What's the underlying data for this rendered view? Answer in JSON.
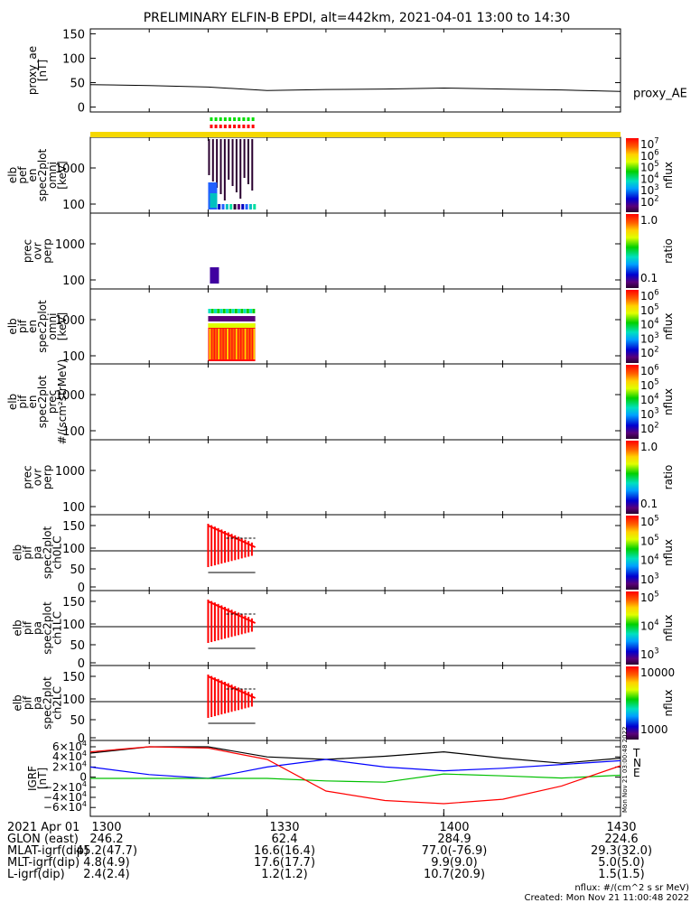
{
  "title": "PRELIMINARY ELFIN-B EPDI, alt=442km, 2021-04-01 13:00 to 14:30",
  "chart_data": [
    {
      "type": "line",
      "panel": "proxy_ae",
      "ylabel": [
        "proxy_ae",
        "[nT]"
      ],
      "yticks": [
        "150",
        "100",
        "50",
        "0"
      ],
      "ylim": [
        -10,
        160
      ],
      "legend": "proxy_AE",
      "x": [
        "13:00",
        "13:10",
        "13:20",
        "13:30",
        "13:40",
        "13:50",
        "14:00",
        "14:10",
        "14:20",
        "14:30"
      ],
      "values": [
        46,
        44,
        41,
        34,
        36,
        37,
        39,
        37,
        35,
        32
      ]
    },
    {
      "type": "heatmap",
      "panel": "elb_pef_en_spec2plot_omni",
      "ylabel": [
        "elb",
        "pef",
        "en",
        "spec2plot",
        "omni",
        "[keV]"
      ],
      "yticks": [
        "1000",
        "100"
      ],
      "colorbar": {
        "label": "nflux",
        "ticks": [
          "10^7",
          "10^6",
          "10^5",
          "10^4",
          "10^3",
          "10^2"
        ]
      },
      "time_range": [
        "13:20",
        "13:28"
      ]
    },
    {
      "type": "heatmap",
      "panel": "prec_ovr_perp_1",
      "ylabel": [
        "prec",
        "ovr",
        "perp"
      ],
      "yticks": [
        "1000",
        "100"
      ],
      "colorbar": {
        "label": "ratio",
        "ticks": [
          "1.0",
          "0.1"
        ]
      }
    },
    {
      "type": "heatmap",
      "panel": "elb_pif_en_spec2plot_omni",
      "ylabel": [
        "elb",
        "pif",
        "en",
        "spec2plot",
        "omni",
        "[keV]"
      ],
      "yticks": [
        "1000",
        "100"
      ],
      "colorbar": {
        "label": "nflux",
        "ticks": [
          "10^6",
          "10^5",
          "10^4",
          "10^3",
          "10^2"
        ]
      },
      "time_range": [
        "13:20",
        "13:28"
      ]
    },
    {
      "type": "heatmap",
      "panel": "elb_pif_en_spec2plot_prec",
      "ylabel": [
        "elb",
        "pif",
        "en",
        "spec2plot",
        "prec",
        "#/(scm²strMeV)"
      ],
      "yticks": [
        "1000",
        "100"
      ],
      "colorbar": {
        "label": "nflux",
        "ticks": [
          "10^6",
          "10^5",
          "10^4",
          "10^3",
          "10^2"
        ]
      }
    },
    {
      "type": "heatmap",
      "panel": "prec_ovr_perp_2",
      "ylabel": [
        "prec",
        "ovr",
        "perp"
      ],
      "yticks": [
        "1000",
        "100"
      ],
      "colorbar": {
        "label": "ratio",
        "ticks": [
          "1.0",
          "0.1"
        ]
      }
    },
    {
      "type": "heatmap",
      "panel": "elb_pif_pa_spec2plot_ch0LC",
      "ylabel": [
        "elb",
        "pif",
        "pa",
        "spec2plot",
        "ch0LC"
      ],
      "yticks": [
        "150",
        "100",
        "50",
        "0"
      ],
      "colorbar": {
        "label": "nflux",
        "ticks": [
          "10^5",
          "10^5",
          "10^4",
          "10^3"
        ]
      }
    },
    {
      "type": "heatmap",
      "panel": "elb_pif_pa_spec2plot_ch1LC",
      "ylabel": [
        "elb",
        "pif",
        "pa",
        "spec2plot",
        "ch1LC"
      ],
      "yticks": [
        "150",
        "100",
        "50",
        "0"
      ],
      "colorbar": {
        "label": "nflux",
        "ticks": [
          "10^5",
          "10^4",
          "10^3"
        ]
      }
    },
    {
      "type": "heatmap",
      "panel": "elb_pif_pa_spec2plot_ch2LC",
      "ylabel": [
        "elb",
        "pif",
        "pa",
        "spec2plot",
        "ch2LC"
      ],
      "yticks": [
        "150",
        "100",
        "50",
        "0"
      ],
      "colorbar": {
        "label": "nflux",
        "ticks": [
          "10000",
          "1000"
        ]
      }
    },
    {
      "type": "line",
      "panel": "IGRF",
      "ylabel": [
        "IGRF",
        "[nT]"
      ],
      "yticks": [
        "6×10⁴",
        "4×10⁴",
        "2×10⁴",
        "0",
        "−2×10⁴",
        "−4×10⁴",
        "−6×10⁴"
      ],
      "ylim": [
        -60000,
        60000
      ],
      "x": [
        "13:00",
        "13:10",
        "13:20",
        "13:30",
        "13:40",
        "13:50",
        "14:00",
        "14:10",
        "14:20",
        "14:30"
      ],
      "series": [
        {
          "name": "T",
          "color": "#000000",
          "values": [
            40000,
            50000,
            50000,
            34000,
            30000,
            35000,
            42000,
            32000,
            24000,
            32000
          ]
        },
        {
          "name": "N",
          "color": "#0000ff",
          "values": [
            18000,
            6000,
            0,
            18000,
            30000,
            18000,
            12000,
            16000,
            22000,
            28000
          ]
        },
        {
          "name": "E",
          "color": "#00c000",
          "values": [
            0,
            0,
            0,
            0,
            -4000,
            -6000,
            7000,
            4000,
            500,
            5000
          ]
        },
        {
          "name": "",
          "color": "#ff0000",
          "values": [
            42000,
            50000,
            48000,
            30000,
            -20000,
            -35000,
            -40000,
            -33000,
            -12000,
            20000
          ]
        }
      ]
    }
  ],
  "xticks": [
    "1300",
    "1330",
    "1400",
    "1430"
  ],
  "footer": {
    "rows": [
      {
        "label": "2021 Apr 01",
        "values": [
          "1300",
          "1330",
          "1400",
          "1430"
        ]
      },
      {
        "label": "GLON (east)",
        "values": [
          "246.2",
          "62.4",
          "284.9",
          "224.6"
        ]
      },
      {
        "label": "MLAT-igrf(dip)",
        "values": [
          "45.2(47.7)",
          "16.6(16.4)",
          "77.0(-76.9)",
          "29.3(32.0)"
        ]
      },
      {
        "label": "MLT-igrf(dip)",
        "values": [
          "4.8(4.9)",
          "17.6(17.7)",
          "9.9(9.0)",
          "5.0(5.0)"
        ]
      },
      {
        "label": "L-igrf(dip)",
        "values": [
          "2.4(2.4)",
          "1.2(1.2)",
          "10.7(20.9)",
          "1.5(1.5)"
        ]
      }
    ],
    "units": "nflux: #/(cm^2 s sr MeV)",
    "created": "Created: Mon Nov 21 11:00:48 2022",
    "side_stamp": "Mon Nov 21 03:00:48 2022"
  },
  "colors": {
    "yellow_bar": "#f5d800",
    "trace": "#000000"
  }
}
